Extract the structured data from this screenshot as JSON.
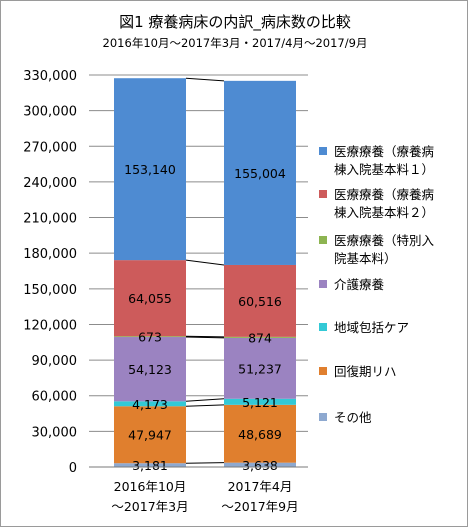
{
  "chart_data": {
    "type": "bar",
    "stacked": true,
    "title": "図1 療養病床の内訳_病床数の比較",
    "subtitle": "2016年10月～2017年3月・2017/4月～2017/9月",
    "categories": [
      [
        "2016年10月",
        "～2017年3月"
      ],
      [
        "2017年4月",
        "～2017年9月"
      ]
    ],
    "ylim": [
      0,
      330000
    ],
    "ytick_step": 30000,
    "yticks": [
      "0",
      "30,000",
      "60,000",
      "90,000",
      "120,000",
      "150,000",
      "180,000",
      "210,000",
      "240,000",
      "270,000",
      "300,000",
      "330,000"
    ],
    "grid": true,
    "legend_position": "right",
    "series": [
      {
        "name": [
          "その他"
        ],
        "color": "#8ea9d0",
        "values": [
          3181,
          3638
        ],
        "labels": [
          "3,181",
          "3,638"
        ]
      },
      {
        "name": [
          "回復期リハ"
        ],
        "color": "#e07f2e",
        "values": [
          47947,
          48689
        ],
        "labels": [
          "47,947",
          "48,689"
        ]
      },
      {
        "name": [
          "地域包括ケア"
        ],
        "color": "#33c9d6",
        "values": [
          4173,
          5121
        ],
        "labels": [
          "4,173",
          "5,121"
        ]
      },
      {
        "name": [
          "介護療養"
        ],
        "color": "#9b83c1",
        "values": [
          54123,
          51237
        ],
        "labels": [
          "54,123",
          "51,237"
        ]
      },
      {
        "name": [
          "医療療養（特別入",
          "院基本料）"
        ],
        "color": "#8db451",
        "values": [
          673,
          874
        ],
        "labels": [
          "673",
          "874"
        ]
      },
      {
        "name": [
          "医療療養（療養病",
          "棟入院基本料２）"
        ],
        "color": "#cd5b5b",
        "values": [
          64055,
          60516
        ],
        "labels": [
          "64,055",
          "60,516"
        ]
      },
      {
        "name": [
          "医療療養（療養病",
          "棟入院基本料１）"
        ],
        "color": "#4e8bd2",
        "values": [
          153140,
          155004
        ],
        "labels": [
          "153,140",
          "155,004"
        ]
      }
    ]
  }
}
